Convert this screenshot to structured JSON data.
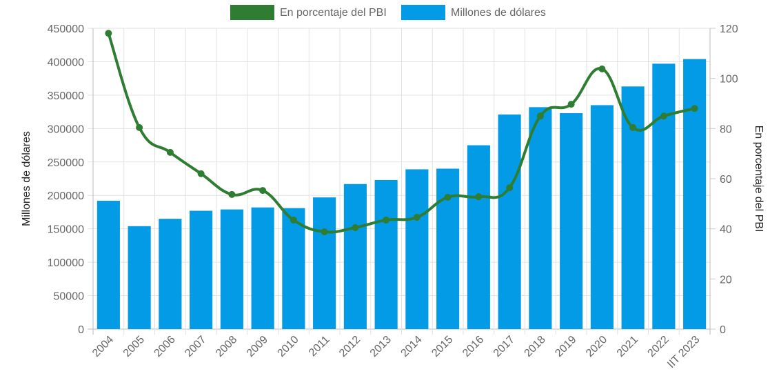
{
  "chart_data": {
    "type": "bar",
    "title": "",
    "categories": [
      "2004",
      "2005",
      "2006",
      "2007",
      "2008",
      "2009",
      "2010",
      "2011",
      "2012",
      "2013",
      "2014",
      "2015",
      "2016",
      "2017",
      "2018",
      "2019",
      "2020",
      "2021",
      "2022",
      "IIT 2023"
    ],
    "series": [
      {
        "name": "En porcentaje del PBI",
        "type": "line",
        "axis": "right",
        "color": "#2e7d32",
        "values": [
          118,
          80.4,
          70.5,
          62,
          53.7,
          55.3,
          43.5,
          38.8,
          40.5,
          43.5,
          44.6,
          52.6,
          52.8,
          56.4,
          85,
          89.7,
          103.8,
          80.4,
          85,
          88
        ]
      },
      {
        "name": "Millones de dólares",
        "type": "bar",
        "axis": "left",
        "color": "#039be5",
        "values": [
          192000,
          154000,
          165000,
          177000,
          179000,
          182000,
          181000,
          197000,
          217000,
          223000,
          239000,
          240000,
          275000,
          321000,
          332000,
          323000,
          335000,
          363000,
          397000,
          404000
        ]
      }
    ],
    "ylabel": "Millones de dólares",
    "y2label": "En porcentaje del PBI",
    "ylim": [
      0,
      450000
    ],
    "yticks": [
      0,
      50000,
      100000,
      150000,
      200000,
      250000,
      300000,
      350000,
      400000,
      450000
    ],
    "y2lim": [
      0,
      120
    ],
    "y2ticks": [
      0,
      20,
      40,
      60,
      80,
      100,
      120
    ],
    "grid": true,
    "legend": "top-center"
  }
}
